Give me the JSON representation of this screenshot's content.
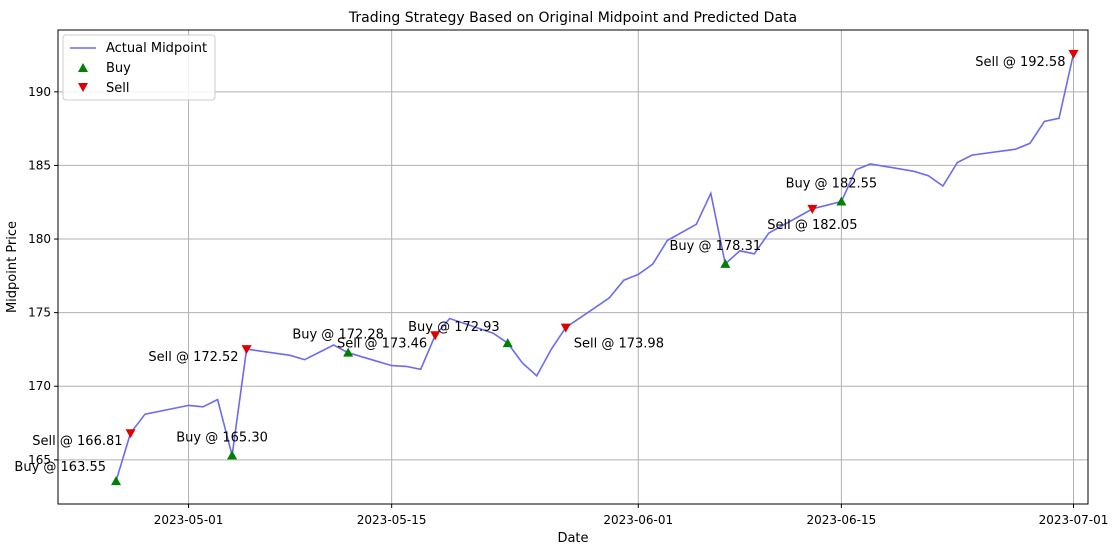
{
  "chart_data": {
    "type": "line",
    "title": "Trading Strategy Based on Original Midpoint and Predicted Data",
    "xlabel": "Date",
    "ylabel": "Midpoint Price",
    "xlim": [
      "2023-04-22",
      "2023-07-02"
    ],
    "ylim": [
      162.0,
      194.2
    ],
    "x_ticks": [
      "2023-05-01",
      "2023-05-15",
      "2023-06-01",
      "2023-06-15",
      "2023-07-01"
    ],
    "y_ticks": [
      165,
      170,
      175,
      180,
      185,
      190
    ],
    "grid": true,
    "legend_position": "top-left",
    "legend": [
      "Actual Midpoint",
      "Buy",
      "Sell"
    ],
    "series": [
      {
        "name": "Actual Midpoint",
        "color": "#6b6bf0",
        "points": [
          [
            "2023-04-26",
            163.55
          ],
          [
            "2023-04-27",
            166.81
          ],
          [
            "2023-04-28",
            168.1
          ],
          [
            "2023-05-01",
            168.7
          ],
          [
            "2023-05-02",
            168.6
          ],
          [
            "2023-05-03",
            169.1
          ],
          [
            "2023-05-04",
            165.3
          ],
          [
            "2023-05-05",
            172.52
          ],
          [
            "2023-05-08",
            172.1
          ],
          [
            "2023-05-09",
            171.8
          ],
          [
            "2023-05-10",
            172.3
          ],
          [
            "2023-05-11",
            172.8
          ],
          [
            "2023-05-12",
            172.28
          ],
          [
            "2023-05-15",
            171.4
          ],
          [
            "2023-05-16",
            171.35
          ],
          [
            "2023-05-17",
            171.15
          ],
          [
            "2023-05-18",
            173.46
          ],
          [
            "2023-05-19",
            174.6
          ],
          [
            "2023-05-22",
            173.6
          ],
          [
            "2023-05-23",
            172.93
          ],
          [
            "2023-05-24",
            171.6
          ],
          [
            "2023-05-25",
            170.7
          ],
          [
            "2023-05-26",
            172.5
          ],
          [
            "2023-05-27",
            173.98
          ],
          [
            "2023-05-30",
            176.0
          ],
          [
            "2023-05-31",
            177.2
          ],
          [
            "2023-06-01",
            177.6
          ],
          [
            "2023-06-02",
            178.3
          ],
          [
            "2023-06-03",
            179.9
          ],
          [
            "2023-06-05",
            181.0
          ],
          [
            "2023-06-06",
            183.1
          ],
          [
            "2023-06-07",
            178.31
          ],
          [
            "2023-06-08",
            179.2
          ],
          [
            "2023-06-09",
            179.0
          ],
          [
            "2023-06-10",
            180.4
          ],
          [
            "2023-06-12",
            181.5
          ],
          [
            "2023-06-13",
            182.05
          ],
          [
            "2023-06-14",
            182.3
          ],
          [
            "2023-06-15",
            182.55
          ],
          [
            "2023-06-16",
            184.7
          ],
          [
            "2023-06-17",
            185.1
          ],
          [
            "2023-06-20",
            184.6
          ],
          [
            "2023-06-21",
            184.3
          ],
          [
            "2023-06-22",
            183.6
          ],
          [
            "2023-06-23",
            185.2
          ],
          [
            "2023-06-24",
            185.7
          ],
          [
            "2023-06-27",
            186.1
          ],
          [
            "2023-06-28",
            186.5
          ],
          [
            "2023-06-29",
            188.0
          ],
          [
            "2023-06-30",
            188.2
          ],
          [
            "2023-07-01",
            192.58
          ]
        ]
      }
    ],
    "buys": [
      {
        "date": "2023-04-26",
        "price": 163.55,
        "label": "Buy @ 163.55",
        "dir": "left"
      },
      {
        "date": "2023-05-04",
        "price": 165.3,
        "label": "Buy @ 165.30",
        "dir": "up"
      },
      {
        "date": "2023-05-12",
        "price": 172.28,
        "label": "Buy @ 172.28",
        "dir": "up"
      },
      {
        "date": "2023-05-23",
        "price": 172.93,
        "label": "Buy @ 172.93",
        "dir": "upleft"
      },
      {
        "date": "2023-06-07",
        "price": 178.31,
        "label": "Buy @ 178.31",
        "dir": "up"
      },
      {
        "date": "2023-06-15",
        "price": 182.55,
        "label": "Buy @ 182.55",
        "dir": "up"
      }
    ],
    "sells": [
      {
        "date": "2023-04-27",
        "price": 166.81,
        "label": "Sell @ 166.81",
        "dir": "downleft"
      },
      {
        "date": "2023-05-05",
        "price": 172.52,
        "label": "Sell @ 172.52",
        "dir": "downleft"
      },
      {
        "date": "2023-05-18",
        "price": 173.46,
        "label": "Sell @ 173.46",
        "dir": "downleft"
      },
      {
        "date": "2023-05-27",
        "price": 173.98,
        "label": "Sell @ 173.98",
        "dir": "downright"
      },
      {
        "date": "2023-06-13",
        "price": 182.05,
        "label": "Sell @ 182.05",
        "dir": "down"
      },
      {
        "date": "2023-07-01",
        "price": 192.58,
        "label": "Sell @ 192.58",
        "dir": "downleft"
      }
    ],
    "colors": {
      "line": "#6b6bf0",
      "buy": "#008000",
      "sell": "#e00000",
      "grid": "#b0b0b0"
    }
  }
}
